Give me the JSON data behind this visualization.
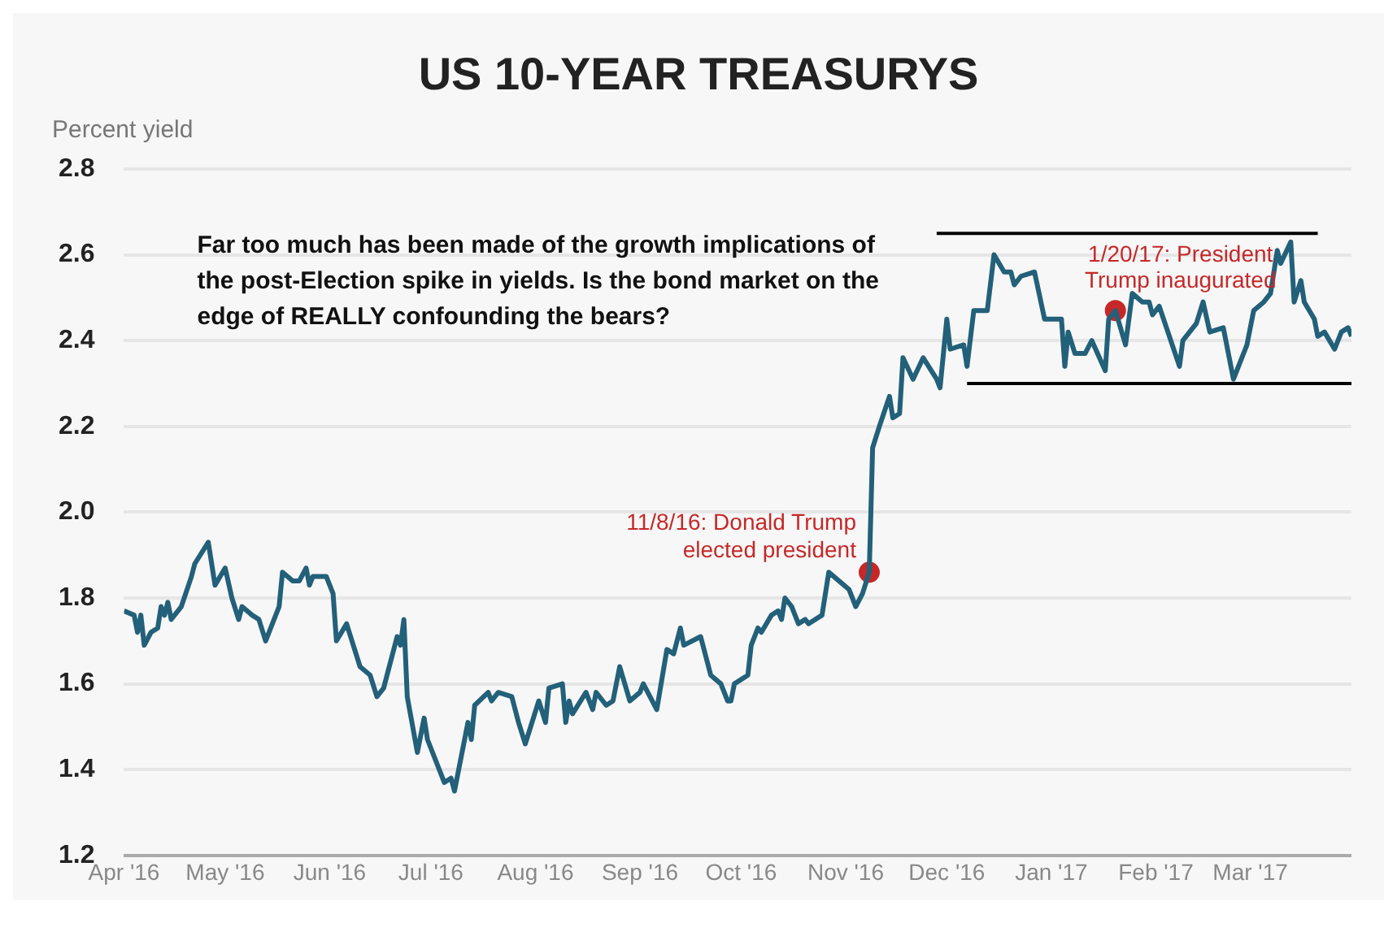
{
  "chart_data": {
    "type": "line",
    "title": "US 10-YEAR TREASURYS",
    "ylabel": "Percent yield",
    "xlim": [
      "2016-04-01",
      "2017-03-31"
    ],
    "xticks": [
      {
        "value": "2016-04-01",
        "label": "Apr '16"
      },
      {
        "value": "2016-05-01",
        "label": "May '16"
      },
      {
        "value": "2016-06-01",
        "label": "Jun '16"
      },
      {
        "value": "2016-07-01",
        "label": "Jul '16"
      },
      {
        "value": "2016-08-01",
        "label": "Aug '16"
      },
      {
        "value": "2016-09-01",
        "label": "Sep '16"
      },
      {
        "value": "2016-10-01",
        "label": "Oct '16"
      },
      {
        "value": "2016-11-01",
        "label": "Nov '16"
      },
      {
        "value": "2016-12-01",
        "label": "Dec '16"
      },
      {
        "value": "2017-01-01",
        "label": "Jan '17"
      },
      {
        "value": "2017-02-01",
        "label": "Feb '17"
      },
      {
        "value": "2017-03-01",
        "label": "Mar '17"
      }
    ],
    "ylim": [
      1.2,
      2.8
    ],
    "yticks": [
      1.2,
      1.4,
      1.6,
      1.8,
      {
        "value": 2,
        "label": "2.0"
      },
      2.2,
      2.4,
      2.6,
      2.8
    ],
    "grid": "y",
    "legend": false,
    "series": [
      {
        "type": "line",
        "color": "#236079",
        "x": [
          "2016-04-01",
          "2016-04-04",
          "2016-04-05",
          "2016-04-06",
          "2016-04-07",
          "2016-04-09",
          "2016-04-11",
          "2016-04-12",
          "2016-04-13",
          "2016-04-14",
          "2016-04-15",
          "2016-04-18",
          "2016-04-21",
          "2016-04-22",
          "2016-04-26",
          "2016-04-28",
          "2016-05-01",
          "2016-05-03",
          "2016-05-05",
          "2016-05-06",
          "2016-05-09",
          "2016-05-11",
          "2016-05-13",
          "2016-05-17",
          "2016-05-18",
          "2016-05-21",
          "2016-05-23",
          "2016-05-25",
          "2016-05-26",
          "2016-05-27",
          "2016-05-31",
          "2016-06-02",
          "2016-06-03",
          "2016-06-06",
          "2016-06-08",
          "2016-06-10",
          "2016-06-13",
          "2016-06-15",
          "2016-06-17",
          "2016-06-21",
          "2016-06-22",
          "2016-06-23",
          "2016-06-24",
          "2016-06-27",
          "2016-06-29",
          "2016-06-30",
          "2016-07-05",
          "2016-07-07",
          "2016-07-08",
          "2016-07-10",
          "2016-07-12",
          "2016-07-13",
          "2016-07-14",
          "2016-07-18",
          "2016-07-19",
          "2016-07-21",
          "2016-07-25",
          "2016-07-27",
          "2016-07-29",
          "2016-08-02",
          "2016-08-04",
          "2016-08-05",
          "2016-08-09",
          "2016-08-10",
          "2016-08-11",
          "2016-08-12",
          "2016-08-16",
          "2016-08-18",
          "2016-08-19",
          "2016-08-22",
          "2016-08-24",
          "2016-08-26",
          "2016-08-29",
          "2016-09-01",
          "2016-09-02",
          "2016-09-06",
          "2016-09-09",
          "2016-09-11",
          "2016-09-13",
          "2016-09-14",
          "2016-09-19",
          "2016-09-22",
          "2016-09-25",
          "2016-09-27",
          "2016-09-28",
          "2016-09-29",
          "2016-10-03",
          "2016-10-04",
          "2016-10-06",
          "2016-10-07",
          "2016-10-10",
          "2016-10-12",
          "2016-10-13",
          "2016-10-14",
          "2016-10-16",
          "2016-10-18",
          "2016-10-20",
          "2016-10-21",
          "2016-10-25",
          "2016-10-27",
          "2016-10-30",
          "2016-11-02",
          "2016-11-04",
          "2016-11-06",
          "2016-11-08",
          "2016-11-09",
          "2016-11-11",
          "2016-11-14",
          "2016-11-15",
          "2016-11-17",
          "2016-11-18",
          "2016-11-21",
          "2016-11-24",
          "2016-11-28",
          "2016-11-29",
          "2016-12-01",
          "2016-12-02",
          "2016-12-06",
          "2016-12-07",
          "2016-12-09",
          "2016-12-13",
          "2016-12-15",
          "2016-12-18",
          "2016-12-20",
          "2016-12-21",
          "2016-12-23",
          "2016-12-27",
          "2016-12-30",
          "2017-01-04",
          "2017-01-05",
          "2017-01-06",
          "2017-01-08",
          "2017-01-11",
          "2017-01-13",
          "2017-01-17",
          "2017-01-18",
          "2017-01-20",
          "2017-01-23",
          "2017-01-25",
          "2017-01-28",
          "2017-01-30",
          "2017-01-31",
          "2017-02-02",
          "2017-02-08",
          "2017-02-09",
          "2017-02-13",
          "2017-02-15",
          "2017-02-17",
          "2017-02-21",
          "2017-02-24",
          "2017-02-28",
          "2017-03-02",
          "2017-03-05",
          "2017-03-07",
          "2017-03-09",
          "2017-03-10",
          "2017-03-13",
          "2017-03-14",
          "2017-03-16",
          "2017-03-17",
          "2017-03-20",
          "2017-03-21",
          "2017-03-23",
          "2017-03-26",
          "2017-03-28",
          "2017-03-30",
          "2017-03-31"
        ],
        "values": [
          1.77,
          1.76,
          1.72,
          1.76,
          1.69,
          1.72,
          1.73,
          1.78,
          1.76,
          1.79,
          1.75,
          1.78,
          1.85,
          1.88,
          1.93,
          1.83,
          1.87,
          1.8,
          1.75,
          1.78,
          1.76,
          1.75,
          1.7,
          1.78,
          1.86,
          1.84,
          1.84,
          1.87,
          1.83,
          1.85,
          1.85,
          1.81,
          1.7,
          1.74,
          1.69,
          1.64,
          1.62,
          1.57,
          1.59,
          1.71,
          1.69,
          1.75,
          1.57,
          1.44,
          1.52,
          1.47,
          1.37,
          1.38,
          1.35,
          1.43,
          1.51,
          1.47,
          1.55,
          1.58,
          1.56,
          1.58,
          1.57,
          1.51,
          1.46,
          1.56,
          1.51,
          1.59,
          1.6,
          1.51,
          1.56,
          1.53,
          1.58,
          1.54,
          1.58,
          1.55,
          1.56,
          1.64,
          1.56,
          1.58,
          1.6,
          1.54,
          1.68,
          1.67,
          1.73,
          1.69,
          1.71,
          1.62,
          1.6,
          1.56,
          1.56,
          1.6,
          1.62,
          1.69,
          1.73,
          1.72,
          1.76,
          1.77,
          1.75,
          1.8,
          1.78,
          1.74,
          1.75,
          1.74,
          1.76,
          1.86,
          1.84,
          1.82,
          1.78,
          1.81,
          1.86,
          2.15,
          2.2,
          2.27,
          2.22,
          2.23,
          2.36,
          2.31,
          2.36,
          2.31,
          2.29,
          2.45,
          2.38,
          2.39,
          2.34,
          2.47,
          2.47,
          2.6,
          2.56,
          2.56,
          2.53,
          2.55,
          2.56,
          2.45,
          2.45,
          2.34,
          2.42,
          2.37,
          2.37,
          2.4,
          2.33,
          2.45,
          2.47,
          2.39,
          2.51,
          2.49,
          2.49,
          2.46,
          2.48,
          2.34,
          2.4,
          2.44,
          2.49,
          2.42,
          2.43,
          2.31,
          2.39,
          2.47,
          2.49,
          2.51,
          2.61,
          2.58,
          2.63,
          2.49,
          2.54,
          2.49,
          2.45,
          2.41,
          2.42,
          2.38,
          2.42,
          2.43,
          2.41
        ]
      },
      {
        "type": "line",
        "color": "#000000",
        "x": [
          "2016-11-28",
          "2017-03-21"
        ],
        "values": [
          2.65,
          2.65
        ]
      },
      {
        "type": "line",
        "color": "#000000",
        "x": [
          "2016-12-07",
          "2017-03-31"
        ],
        "values": [
          2.3,
          2.3
        ]
      },
      {
        "type": "scatter",
        "color": "#c62828",
        "x": [
          "2016-11-08",
          "2017-01-20"
        ],
        "values": [
          1.86,
          2.47
        ]
      }
    ],
    "annotations": [
      "Far too much has been made of the growth implications of the post-Election spike in yields. Is the bond market on the edge of REALLY confounding the bears?",
      {
        "text": "11/8/16: Donald Trump elected president",
        "x": "2016-11-08",
        "y": 1.86
      },
      {
        "text": "1/20/17: President Trump inaugurated",
        "x": "2017-01-20",
        "y": 2.47
      }
    ]
  }
}
